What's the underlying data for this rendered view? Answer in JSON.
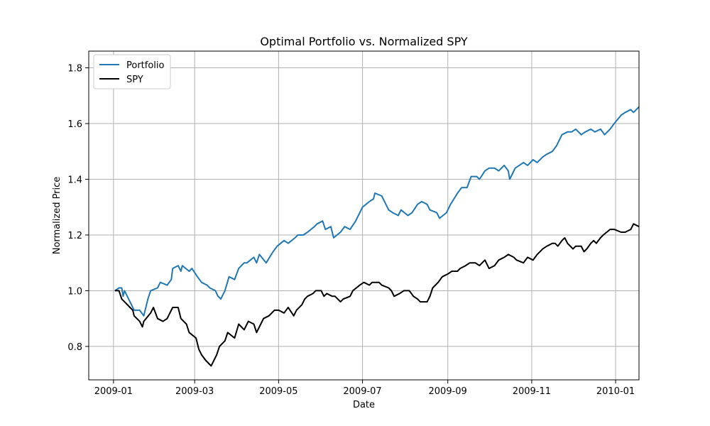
{
  "chart_data": {
    "type": "line",
    "title": "Optimal Portfolio vs. Normalized SPY",
    "xlabel": "Date",
    "ylabel": "Normalized Price",
    "xlim": [
      "2008-12-14",
      "2010-01-18"
    ],
    "ylim": [
      0.68,
      1.86
    ],
    "x_ticks": [
      "2009-01",
      "2009-03",
      "2009-05",
      "2009-07",
      "2009-09",
      "2009-11",
      "2010-01"
    ],
    "y_ticks": [
      "0.8",
      "1.0",
      "1.2",
      "1.4",
      "1.6",
      "1.8"
    ],
    "grid": true,
    "legend_position": "upper-left",
    "colors": {
      "Portfolio": "#1f77b4",
      "SPY": "#000000"
    },
    "series": [
      {
        "name": "Portfolio",
        "points": [
          [
            "2009-01-02",
            1.0
          ],
          [
            "2009-01-05",
            1.01
          ],
          [
            "2009-01-07",
            1.01
          ],
          [
            "2009-01-08",
            0.98
          ],
          [
            "2009-01-09",
            1.0
          ],
          [
            "2009-01-12",
            0.97
          ],
          [
            "2009-01-14",
            0.95
          ],
          [
            "2009-01-16",
            0.93
          ],
          [
            "2009-01-20",
            0.93
          ],
          [
            "2009-01-23",
            0.91
          ],
          [
            "2009-01-26",
            0.97
          ],
          [
            "2009-01-28",
            1.0
          ],
          [
            "2009-02-02",
            1.01
          ],
          [
            "2009-02-04",
            1.03
          ],
          [
            "2009-02-09",
            1.02
          ],
          [
            "2009-02-12",
            1.04
          ],
          [
            "2009-02-13",
            1.08
          ],
          [
            "2009-02-17",
            1.09
          ],
          [
            "2009-02-19",
            1.07
          ],
          [
            "2009-02-20",
            1.09
          ],
          [
            "2009-02-25",
            1.07
          ],
          [
            "2009-02-27",
            1.08
          ],
          [
            "2009-03-03",
            1.05
          ],
          [
            "2009-03-06",
            1.03
          ],
          [
            "2009-03-10",
            1.02
          ],
          [
            "2009-03-12",
            1.01
          ],
          [
            "2009-03-16",
            1.0
          ],
          [
            "2009-03-18",
            0.98
          ],
          [
            "2009-03-20",
            0.97
          ],
          [
            "2009-03-23",
            1.0
          ],
          [
            "2009-03-26",
            1.05
          ],
          [
            "2009-03-30",
            1.04
          ],
          [
            "2009-04-02",
            1.08
          ],
          [
            "2009-04-06",
            1.1
          ],
          [
            "2009-04-08",
            1.1
          ],
          [
            "2009-04-13",
            1.12
          ],
          [
            "2009-04-15",
            1.1
          ],
          [
            "2009-04-17",
            1.13
          ],
          [
            "2009-04-22",
            1.1
          ],
          [
            "2009-04-27",
            1.14
          ],
          [
            "2009-04-30",
            1.16
          ],
          [
            "2009-05-05",
            1.18
          ],
          [
            "2009-05-08",
            1.17
          ],
          [
            "2009-05-13",
            1.19
          ],
          [
            "2009-05-15",
            1.2
          ],
          [
            "2009-05-19",
            1.2
          ],
          [
            "2009-05-22",
            1.21
          ],
          [
            "2009-05-27",
            1.23
          ],
          [
            "2009-05-29",
            1.24
          ],
          [
            "2009-06-02",
            1.25
          ],
          [
            "2009-06-04",
            1.22
          ],
          [
            "2009-06-08",
            1.23
          ],
          [
            "2009-06-10",
            1.19
          ],
          [
            "2009-06-15",
            1.21
          ],
          [
            "2009-06-18",
            1.23
          ],
          [
            "2009-06-22",
            1.22
          ],
          [
            "2009-06-26",
            1.25
          ],
          [
            "2009-07-01",
            1.3
          ],
          [
            "2009-07-06",
            1.32
          ],
          [
            "2009-07-09",
            1.33
          ],
          [
            "2009-07-10",
            1.35
          ],
          [
            "2009-07-15",
            1.34
          ],
          [
            "2009-07-17",
            1.32
          ],
          [
            "2009-07-20",
            1.29
          ],
          [
            "2009-07-23",
            1.28
          ],
          [
            "2009-07-27",
            1.27
          ],
          [
            "2009-07-29",
            1.29
          ],
          [
            "2009-08-03",
            1.27
          ],
          [
            "2009-08-06",
            1.28
          ],
          [
            "2009-08-10",
            1.31
          ],
          [
            "2009-08-13",
            1.32
          ],
          [
            "2009-08-17",
            1.31
          ],
          [
            "2009-08-19",
            1.29
          ],
          [
            "2009-08-24",
            1.28
          ],
          [
            "2009-08-26",
            1.26
          ],
          [
            "2009-08-31",
            1.28
          ],
          [
            "2009-09-03",
            1.31
          ],
          [
            "2009-09-08",
            1.35
          ],
          [
            "2009-09-11",
            1.37
          ],
          [
            "2009-09-15",
            1.37
          ],
          [
            "2009-09-18",
            1.41
          ],
          [
            "2009-09-22",
            1.41
          ],
          [
            "2009-09-24",
            1.4
          ],
          [
            "2009-09-28",
            1.43
          ],
          [
            "2009-10-01",
            1.44
          ],
          [
            "2009-10-05",
            1.44
          ],
          [
            "2009-10-08",
            1.43
          ],
          [
            "2009-10-12",
            1.45
          ],
          [
            "2009-10-15",
            1.43
          ],
          [
            "2009-10-16",
            1.4
          ],
          [
            "2009-10-20",
            1.44
          ],
          [
            "2009-10-23",
            1.45
          ],
          [
            "2009-10-26",
            1.46
          ],
          [
            "2009-10-29",
            1.45
          ],
          [
            "2009-11-02",
            1.47
          ],
          [
            "2009-11-05",
            1.46
          ],
          [
            "2009-11-09",
            1.48
          ],
          [
            "2009-11-12",
            1.49
          ],
          [
            "2009-11-16",
            1.5
          ],
          [
            "2009-11-19",
            1.52
          ],
          [
            "2009-11-23",
            1.56
          ],
          [
            "2009-11-27",
            1.57
          ],
          [
            "2009-11-30",
            1.57
          ],
          [
            "2009-12-03",
            1.58
          ],
          [
            "2009-12-07",
            1.56
          ],
          [
            "2009-12-10",
            1.57
          ],
          [
            "2009-12-14",
            1.58
          ],
          [
            "2009-12-17",
            1.57
          ],
          [
            "2009-12-21",
            1.58
          ],
          [
            "2009-12-24",
            1.56
          ],
          [
            "2009-12-28",
            1.58
          ],
          [
            "2009-12-31",
            1.6
          ],
          [
            "2010-01-05",
            1.63
          ],
          [
            "2010-01-08",
            1.64
          ],
          [
            "2010-01-12",
            1.65
          ],
          [
            "2010-01-14",
            1.64
          ],
          [
            "2010-01-18",
            1.66
          ]
        ]
      },
      {
        "name": "SPY",
        "points": [
          [
            "2009-01-02",
            1.0
          ],
          [
            "2009-01-05",
            1.0
          ],
          [
            "2009-01-07",
            0.97
          ],
          [
            "2009-01-09",
            0.96
          ],
          [
            "2009-01-13",
            0.94
          ],
          [
            "2009-01-15",
            0.93
          ],
          [
            "2009-01-16",
            0.91
          ],
          [
            "2009-01-20",
            0.89
          ],
          [
            "2009-01-22",
            0.87
          ],
          [
            "2009-01-23",
            0.89
          ],
          [
            "2009-01-28",
            0.92
          ],
          [
            "2009-01-30",
            0.94
          ],
          [
            "2009-02-02",
            0.9
          ],
          [
            "2009-02-06",
            0.89
          ],
          [
            "2009-02-09",
            0.9
          ],
          [
            "2009-02-11",
            0.92
          ],
          [
            "2009-02-13",
            0.94
          ],
          [
            "2009-02-17",
            0.94
          ],
          [
            "2009-02-19",
            0.9
          ],
          [
            "2009-02-23",
            0.88
          ],
          [
            "2009-02-25",
            0.85
          ],
          [
            "2009-03-02",
            0.83
          ],
          [
            "2009-03-04",
            0.79
          ],
          [
            "2009-03-06",
            0.77
          ],
          [
            "2009-03-09",
            0.75
          ],
          [
            "2009-03-11",
            0.74
          ],
          [
            "2009-03-13",
            0.73
          ],
          [
            "2009-03-17",
            0.77
          ],
          [
            "2009-03-19",
            0.8
          ],
          [
            "2009-03-23",
            0.82
          ],
          [
            "2009-03-25",
            0.85
          ],
          [
            "2009-03-30",
            0.83
          ],
          [
            "2009-04-02",
            0.88
          ],
          [
            "2009-04-06",
            0.86
          ],
          [
            "2009-04-09",
            0.89
          ],
          [
            "2009-04-13",
            0.88
          ],
          [
            "2009-04-15",
            0.85
          ],
          [
            "2009-04-20",
            0.9
          ],
          [
            "2009-04-24",
            0.91
          ],
          [
            "2009-04-28",
            0.93
          ],
          [
            "2009-05-01",
            0.93
          ],
          [
            "2009-05-05",
            0.92
          ],
          [
            "2009-05-08",
            0.94
          ],
          [
            "2009-05-12",
            0.91
          ],
          [
            "2009-05-14",
            0.93
          ],
          [
            "2009-05-18",
            0.95
          ],
          [
            "2009-05-20",
            0.97
          ],
          [
            "2009-05-22",
            0.98
          ],
          [
            "2009-05-26",
            0.99
          ],
          [
            "2009-05-28",
            1.0
          ],
          [
            "2009-06-01",
            1.0
          ],
          [
            "2009-06-03",
            0.98
          ],
          [
            "2009-06-05",
            0.99
          ],
          [
            "2009-06-09",
            0.98
          ],
          [
            "2009-06-11",
            0.98
          ],
          [
            "2009-06-15",
            0.96
          ],
          [
            "2009-06-17",
            0.97
          ],
          [
            "2009-06-22",
            0.98
          ],
          [
            "2009-06-24",
            1.0
          ],
          [
            "2009-06-29",
            1.02
          ],
          [
            "2009-07-02",
            1.03
          ],
          [
            "2009-07-06",
            1.02
          ],
          [
            "2009-07-08",
            1.03
          ],
          [
            "2009-07-13",
            1.03
          ],
          [
            "2009-07-15",
            1.02
          ],
          [
            "2009-07-20",
            1.01
          ],
          [
            "2009-07-22",
            1.0
          ],
          [
            "2009-07-24",
            0.98
          ],
          [
            "2009-07-28",
            0.99
          ],
          [
            "2009-07-31",
            1.0
          ],
          [
            "2009-08-04",
            1.0
          ],
          [
            "2009-08-07",
            0.98
          ],
          [
            "2009-08-10",
            0.97
          ],
          [
            "2009-08-12",
            0.96
          ],
          [
            "2009-08-17",
            0.96
          ],
          [
            "2009-08-19",
            0.98
          ],
          [
            "2009-08-21",
            1.01
          ],
          [
            "2009-08-25",
            1.03
          ],
          [
            "2009-08-28",
            1.05
          ],
          [
            "2009-09-01",
            1.06
          ],
          [
            "2009-09-04",
            1.07
          ],
          [
            "2009-09-08",
            1.07
          ],
          [
            "2009-09-10",
            1.08
          ],
          [
            "2009-09-14",
            1.09
          ],
          [
            "2009-09-17",
            1.1
          ],
          [
            "2009-09-21",
            1.1
          ],
          [
            "2009-09-24",
            1.09
          ],
          [
            "2009-09-28",
            1.11
          ],
          [
            "2009-10-01",
            1.08
          ],
          [
            "2009-10-05",
            1.09
          ],
          [
            "2009-10-08",
            1.11
          ],
          [
            "2009-10-12",
            1.12
          ],
          [
            "2009-10-15",
            1.13
          ],
          [
            "2009-10-19",
            1.12
          ],
          [
            "2009-10-21",
            1.11
          ],
          [
            "2009-10-26",
            1.1
          ],
          [
            "2009-10-29",
            1.12
          ],
          [
            "2009-11-02",
            1.11
          ],
          [
            "2009-11-05",
            1.13
          ],
          [
            "2009-11-09",
            1.15
          ],
          [
            "2009-11-12",
            1.16
          ],
          [
            "2009-11-16",
            1.17
          ],
          [
            "2009-11-18",
            1.17
          ],
          [
            "2009-11-20",
            1.16
          ],
          [
            "2009-11-23",
            1.18
          ],
          [
            "2009-11-25",
            1.19
          ],
          [
            "2009-11-27",
            1.17
          ],
          [
            "2009-12-01",
            1.15
          ],
          [
            "2009-12-03",
            1.16
          ],
          [
            "2009-12-07",
            1.16
          ],
          [
            "2009-12-09",
            1.14
          ],
          [
            "2009-12-11",
            1.15
          ],
          [
            "2009-12-14",
            1.17
          ],
          [
            "2009-12-16",
            1.18
          ],
          [
            "2009-12-18",
            1.17
          ],
          [
            "2009-12-21",
            1.19
          ],
          [
            "2009-12-23",
            1.2
          ],
          [
            "2009-12-28",
            1.22
          ],
          [
            "2009-12-31",
            1.22
          ],
          [
            "2010-01-05",
            1.21
          ],
          [
            "2010-01-08",
            1.21
          ],
          [
            "2010-01-12",
            1.22
          ],
          [
            "2010-01-14",
            1.24
          ],
          [
            "2010-01-18",
            1.23
          ]
        ]
      }
    ]
  }
}
